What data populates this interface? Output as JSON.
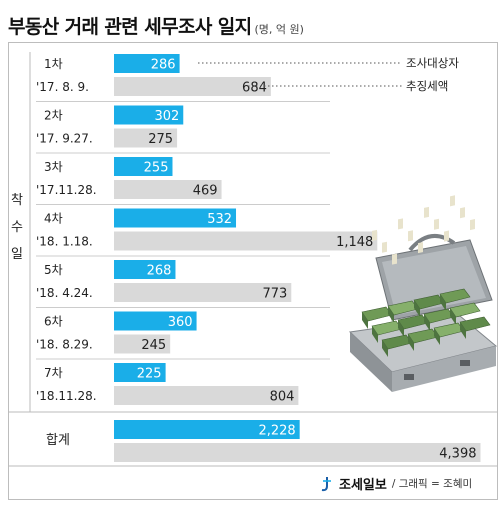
{
  "header": {
    "title": "부동산 거래 관련 세무조사 일지",
    "unit": "(명, 억 원)"
  },
  "side_label": [
    "착",
    "수",
    "일"
  ],
  "legend": {
    "investigated": "조사대상자",
    "collected": "추징세액"
  },
  "colors": {
    "investigated": "#1aaee8",
    "collected": "#d9d9d9",
    "text": "#222222",
    "divider": "#bbbbbb"
  },
  "chart_data": {
    "type": "bar",
    "orientation": "horizontal",
    "categories": [
      "1차 '17. 8. 9.",
      "2차 '17. 9.27.",
      "3차 '17.11.28.",
      "4차 '18. 1.18.",
      "5차 '18. 4.24.",
      "6차 '18. 8.29.",
      "7차 '18.11.28.",
      "합계"
    ],
    "rounds": [
      "1차",
      "2차",
      "3차",
      "4차",
      "5차",
      "6차",
      "7차"
    ],
    "dates": [
      "'17. 8. 9.",
      "'17. 9.27.",
      "'17.11.28.",
      "'18. 1.18.",
      "'18. 4.24.",
      "'18. 8.29.",
      "'18.11.28."
    ],
    "series": [
      {
        "name": "조사대상자",
        "values": [
          286,
          302,
          255,
          532,
          268,
          360,
          225,
          2228
        ],
        "labels": [
          "286",
          "302",
          "255",
          "532",
          "268",
          "360",
          "225",
          "2,228"
        ]
      },
      {
        "name": "추징세액",
        "values": [
          684,
          275,
          469,
          1148,
          773,
          245,
          804,
          4398
        ],
        "labels": [
          "684",
          "275",
          "469",
          "1,148",
          "773",
          "245",
          "804",
          "4,398"
        ]
      }
    ],
    "total_label": "합계"
  },
  "footer": {
    "brand": "조세일보",
    "credit": "/ 그래픽 = 조혜미"
  }
}
